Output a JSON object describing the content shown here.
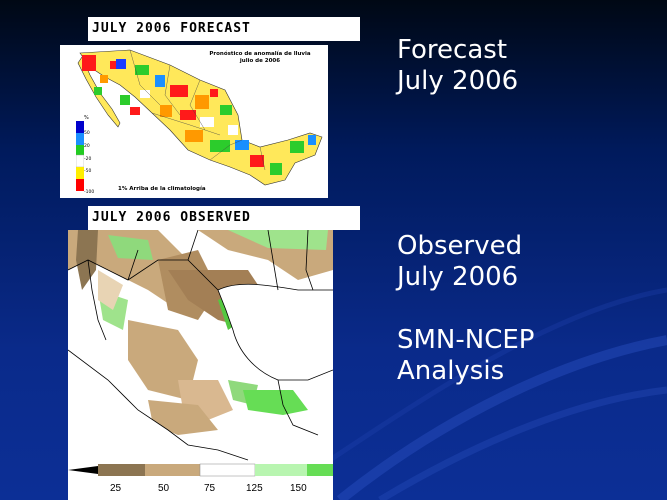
{
  "forecast_panel": {
    "header": "JULY 2006 FORECAST",
    "map_title_line1": "Pronóstico de anomalía de lluvia",
    "map_title_line2": "julio de 2006",
    "legend_unit": "%",
    "legend_ticks": [
      "50",
      "20",
      "-20",
      "-50",
      "-100"
    ],
    "legend_colors": [
      "#0000cc",
      "#1a8fff",
      "#22cc22",
      "#ffffff",
      "#ffee00",
      "#ff0000"
    ],
    "caption": "1%  Arriba de la climatología"
  },
  "observed_panel": {
    "header": "JULY 2006 OBSERVED",
    "colorbar_ticks": [
      "25",
      "50",
      "75",
      "125",
      "150"
    ],
    "colorbar_colors": [
      "#000000",
      "#8c7552",
      "#c9a97c",
      "#ffffff",
      "#b8f5b0",
      "#66dd55"
    ]
  },
  "side_text": {
    "forecast_line1": "Forecast",
    "forecast_line2": "July 2006",
    "observed_line1": "Observed",
    "observed_line2": "July 2006",
    "source_line1": "SMN-NCEP",
    "source_line2": "Analysis"
  }
}
